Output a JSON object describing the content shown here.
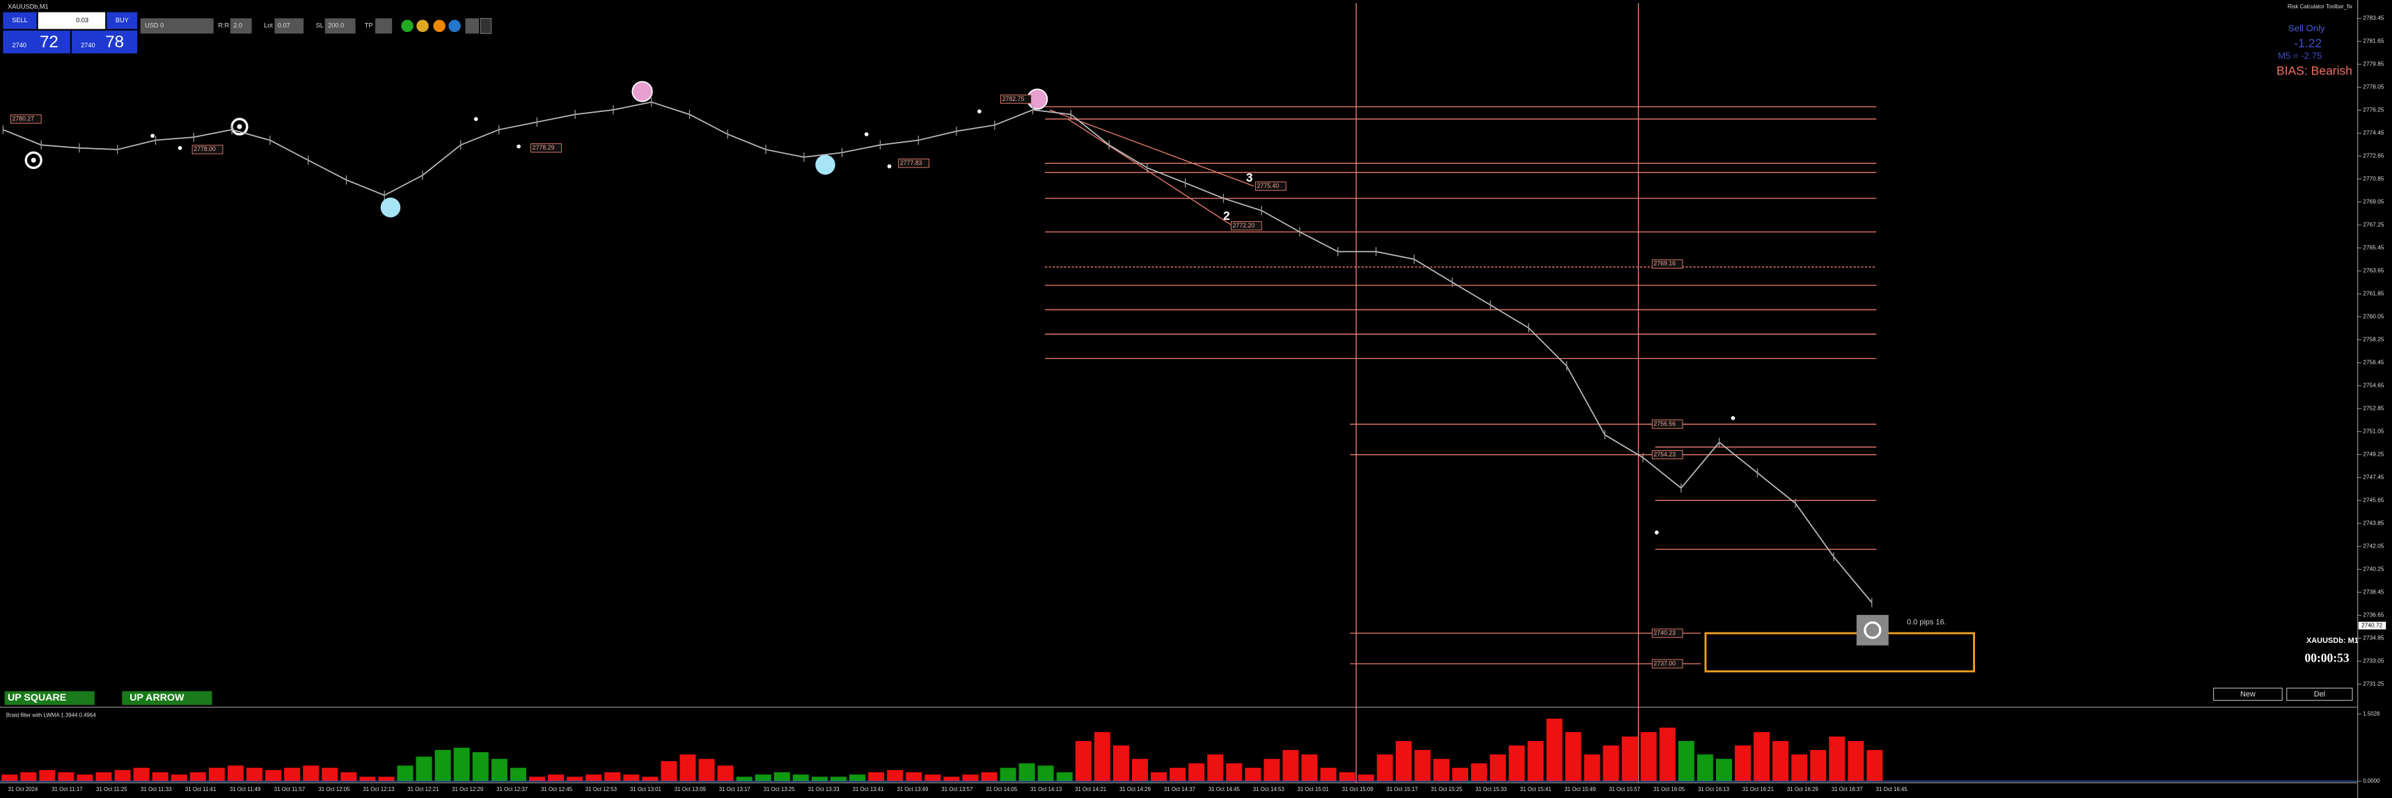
{
  "window": {
    "symbol": "XAUUSDb,M1",
    "plugin": "Risk Calculator Toolbar_fix"
  },
  "trade_panel": {
    "sell": "SELL",
    "buy": "BUY",
    "lot": "0.03",
    "sell_big": "2740",
    "sell_pips": "72",
    "buy_big": "2740",
    "buy_pips": "78"
  },
  "toolbar": {
    "balance": "USD 0",
    "rr_label": "R:R",
    "rr": "2.0",
    "lot_label": "Lot",
    "lot": "0.07",
    "sl_label": "SL",
    "sl": "200.0",
    "tp_label": "TP"
  },
  "info": {
    "mode": "Sell Only",
    "value": "-1.22",
    "m5": "M5 = -2.75",
    "bias": "BIAS: Bearish",
    "symbol": "XAUUSDb: M1",
    "timer": "00:00:53",
    "pips": "0.0 pips 16."
  },
  "buttons": {
    "up_square": "UP SQUARE",
    "up_arrow": "UP ARROW",
    "new": "New",
    "del": "Del"
  },
  "chart": {
    "ylim": [
      2729.5,
      2784.65
    ],
    "yticks": [
      2783.45,
      2781.65,
      2779.85,
      2778.05,
      2776.25,
      2774.45,
      2772.65,
      2770.85,
      2769.05,
      2767.25,
      2765.45,
      2763.65,
      2761.85,
      2760.05,
      2758.25,
      2756.45,
      2754.65,
      2752.85,
      2751.05,
      2749.25,
      2747.45,
      2745.65,
      2743.85,
      2742.05,
      2740.25,
      2738.45,
      2736.65,
      2734.85,
      2733.05,
      2731.25
    ],
    "current_price": "2740.72",
    "close": [
      2774.72,
      2773.53,
      2773.29,
      2773.17,
      2773.89,
      2774.13,
      2774.72,
      2773.89,
      2772.33,
      2770.78,
      2769.58,
      2771.14,
      2773.53,
      2774.72,
      2775.32,
      2775.92,
      2776.28,
      2776.88,
      2775.92,
      2774.36,
      2773.17,
      2772.57,
      2772.93,
      2773.53,
      2773.89,
      2774.6,
      2775.08,
      2776.28,
      2775.92,
      2773.53,
      2771.73,
      2770.54,
      2769.34,
      2768.38,
      2766.71,
      2765.16,
      2765.16,
      2764.56,
      2762.76,
      2760.97,
      2759.18,
      2756.19,
      2750.8,
      2749.01,
      2746.62,
      2750.21,
      2747.81,
      2745.42,
      2741.24,
      2737.65
    ],
    "time_labels": [
      "31 Oct 2024",
      "31 Oct 11:17",
      "31 Oct 11:25",
      "31 Oct 11:33",
      "31 Oct 11:41",
      "31 Oct 11:49",
      "31 Oct 11:57",
      "31 Oct 12:05",
      "31 Oct 12:13",
      "31 Oct 12:21",
      "31 Oct 12:29",
      "31 Oct 12:37",
      "31 Oct 12:45",
      "31 Oct 12:53",
      "31 Oct 13:01",
      "31 Oct 13:09",
      "31 Oct 13:17",
      "31 Oct 13:25",
      "31 Oct 13:33",
      "31 Oct 13:41",
      "31 Oct 13:49",
      "31 Oct 13:57",
      "31 Oct 14:05",
      "31 Oct 14:13",
      "31 Oct 14:21",
      "31 Oct 14:29",
      "31 Oct 14:37",
      "31 Oct 14:45",
      "31 Oct 14:53",
      "31 Oct 15:01",
      "31 Oct 15:09",
      "31 Oct 15:17",
      "31 Oct 15:25",
      "31 Oct 15:33",
      "31 Oct 15:41",
      "31 Oct 15:49",
      "31 Oct 15:57",
      "31 Oct 16:05",
      "31 Oct 16:13",
      "31 Oct 16:21",
      "31 Oct 16:29",
      "31 Oct 16:37",
      "31 Oct 16:45"
    ],
    "levels": [
      "2780.27",
      "2778.00",
      "2778.29",
      "2777.83",
      "2782.75",
      "2775.40",
      "2772.20",
      "2769.16",
      "2756.56",
      "2754.23",
      "2740.23",
      "2737.00"
    ],
    "wave_labels": [
      "3",
      "2"
    ]
  },
  "indicator": {
    "title": "Braid filter with LWMA  1.3944  0.4964",
    "ylim": [
      0,
      1.5028
    ],
    "yticks": [
      1.5028,
      {
        "value": 0,
        "label": "0.0000"
      }
    ],
    "values": [
      0.15,
      0.2,
      0.25,
      0.2,
      0.15,
      0.2,
      0.25,
      0.3,
      0.2,
      0.15,
      0.2,
      0.3,
      0.35,
      0.3,
      0.25,
      0.3,
      0.35,
      0.3,
      0.2,
      0.1,
      0.1,
      0.35,
      0.55,
      0.7,
      0.75,
      0.65,
      0.5,
      0.3,
      0.1,
      0.15,
      0.1,
      0.15,
      0.2,
      0.15,
      0.1,
      0.45,
      0.6,
      0.5,
      0.35,
      0.1,
      0.15,
      0.2,
      0.15,
      0.1,
      0.1,
      0.15,
      0.2,
      0.25,
      0.2,
      0.15,
      0.1,
      0.15,
      0.2,
      0.3,
      0.4,
      0.35,
      0.2,
      0.9,
      1.1,
      0.8,
      0.5,
      0.2,
      0.3,
      0.4,
      0.6,
      0.4,
      0.3,
      0.5,
      0.7,
      0.6,
      0.3,
      0.2,
      0.15,
      0.6,
      0.9,
      0.7,
      0.5,
      0.3,
      0.4,
      0.6,
      0.8,
      0.9,
      1.4,
      1.1,
      0.6,
      0.8,
      1.0,
      1.1,
      1.2,
      0.9,
      0.6,
      0.5,
      0.8,
      1.1,
      0.9,
      0.6,
      0.7,
      1.0,
      0.9,
      0.7
    ],
    "colors": [
      "#ee1111",
      "#ee1111",
      "#ee1111",
      "#ee1111",
      "#ee1111",
      "#ee1111",
      "#ee1111",
      "#ee1111",
      "#ee1111",
      "#ee1111",
      "#ee1111",
      "#ee1111",
      "#ee1111",
      "#ee1111",
      "#ee1111",
      "#ee1111",
      "#ee1111",
      "#ee1111",
      "#ee1111",
      "#ee1111",
      "#ee1111",
      "#119911",
      "#119911",
      "#119911",
      "#119911",
      "#119911",
      "#119911",
      "#119911",
      "#ee1111",
      "#ee1111",
      "#ee1111",
      "#ee1111",
      "#ee1111",
      "#ee1111",
      "#ee1111",
      "#ee1111",
      "#ee1111",
      "#ee1111",
      "#ee1111",
      "#119911",
      "#119911",
      "#119911",
      "#119911",
      "#119911",
      "#119911",
      "#119911",
      "#ee1111",
      "#ee1111",
      "#ee1111",
      "#ee1111",
      "#ee1111",
      "#ee1111",
      "#ee1111",
      "#119911",
      "#119911",
      "#119911",
      "#119911",
      "#ee1111",
      "#ee1111",
      "#ee1111",
      "#ee1111",
      "#ee1111",
      "#ee1111",
      "#ee1111",
      "#ee1111",
      "#ee1111",
      "#ee1111",
      "#ee1111",
      "#ee1111",
      "#ee1111",
      "#ee1111",
      "#ee1111",
      "#ee1111",
      "#ee1111",
      "#ee1111",
      "#ee1111",
      "#ee1111",
      "#ee1111",
      "#ee1111",
      "#ee1111",
      "#ee1111",
      "#ee1111",
      "#ee1111",
      "#ee1111",
      "#ee1111",
      "#ee1111",
      "#ee1111",
      "#ee1111",
      "#ee1111",
      "#119911",
      "#119911",
      "#119911",
      "#ee1111",
      "#ee1111",
      "#ee1111",
      "#ee1111",
      "#ee1111",
      "#ee1111",
      "#ee1111",
      "#ee1111"
    ]
  }
}
